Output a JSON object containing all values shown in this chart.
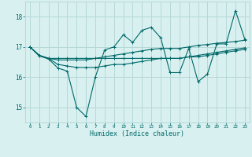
{
  "background_color": "#d8f0f0",
  "grid_color": "#b8d8d8",
  "line_color": "#006868",
  "x_label": "Humidex (Indice chaleur)",
  "x_ticks": [
    0,
    1,
    2,
    3,
    4,
    5,
    6,
    7,
    8,
    9,
    10,
    11,
    12,
    13,
    14,
    15,
    16,
    17,
    18,
    19,
    20,
    21,
    22,
    23
  ],
  "ylim": [
    14.5,
    18.5
  ],
  "y_ticks": [
    15,
    16,
    17,
    18
  ],
  "series1": [
    17.0,
    16.7,
    16.6,
    16.3,
    16.2,
    15.0,
    14.7,
    16.0,
    16.9,
    17.0,
    17.4,
    17.15,
    17.55,
    17.65,
    17.3,
    16.15,
    16.15,
    16.95,
    15.85,
    16.1,
    17.1,
    17.1,
    18.2,
    17.25
  ],
  "series2": [
    17.0,
    16.72,
    16.62,
    16.57,
    16.57,
    16.57,
    16.57,
    16.62,
    16.67,
    16.72,
    16.77,
    16.82,
    16.87,
    16.92,
    16.95,
    16.95,
    16.95,
    17.0,
    17.05,
    17.08,
    17.12,
    17.15,
    17.18,
    17.22
  ],
  "series3": [
    17.0,
    16.72,
    16.62,
    16.42,
    16.37,
    16.32,
    16.32,
    16.32,
    16.37,
    16.42,
    16.42,
    16.47,
    16.52,
    16.57,
    16.62,
    16.62,
    16.62,
    16.67,
    16.67,
    16.72,
    16.77,
    16.82,
    16.87,
    16.92
  ],
  "series4": [
    17.0,
    16.72,
    16.62,
    16.62,
    16.62,
    16.62,
    16.62,
    16.62,
    16.62,
    16.62,
    16.62,
    16.62,
    16.62,
    16.62,
    16.62,
    16.62,
    16.62,
    16.67,
    16.72,
    16.77,
    16.82,
    16.87,
    16.92,
    16.97
  ]
}
